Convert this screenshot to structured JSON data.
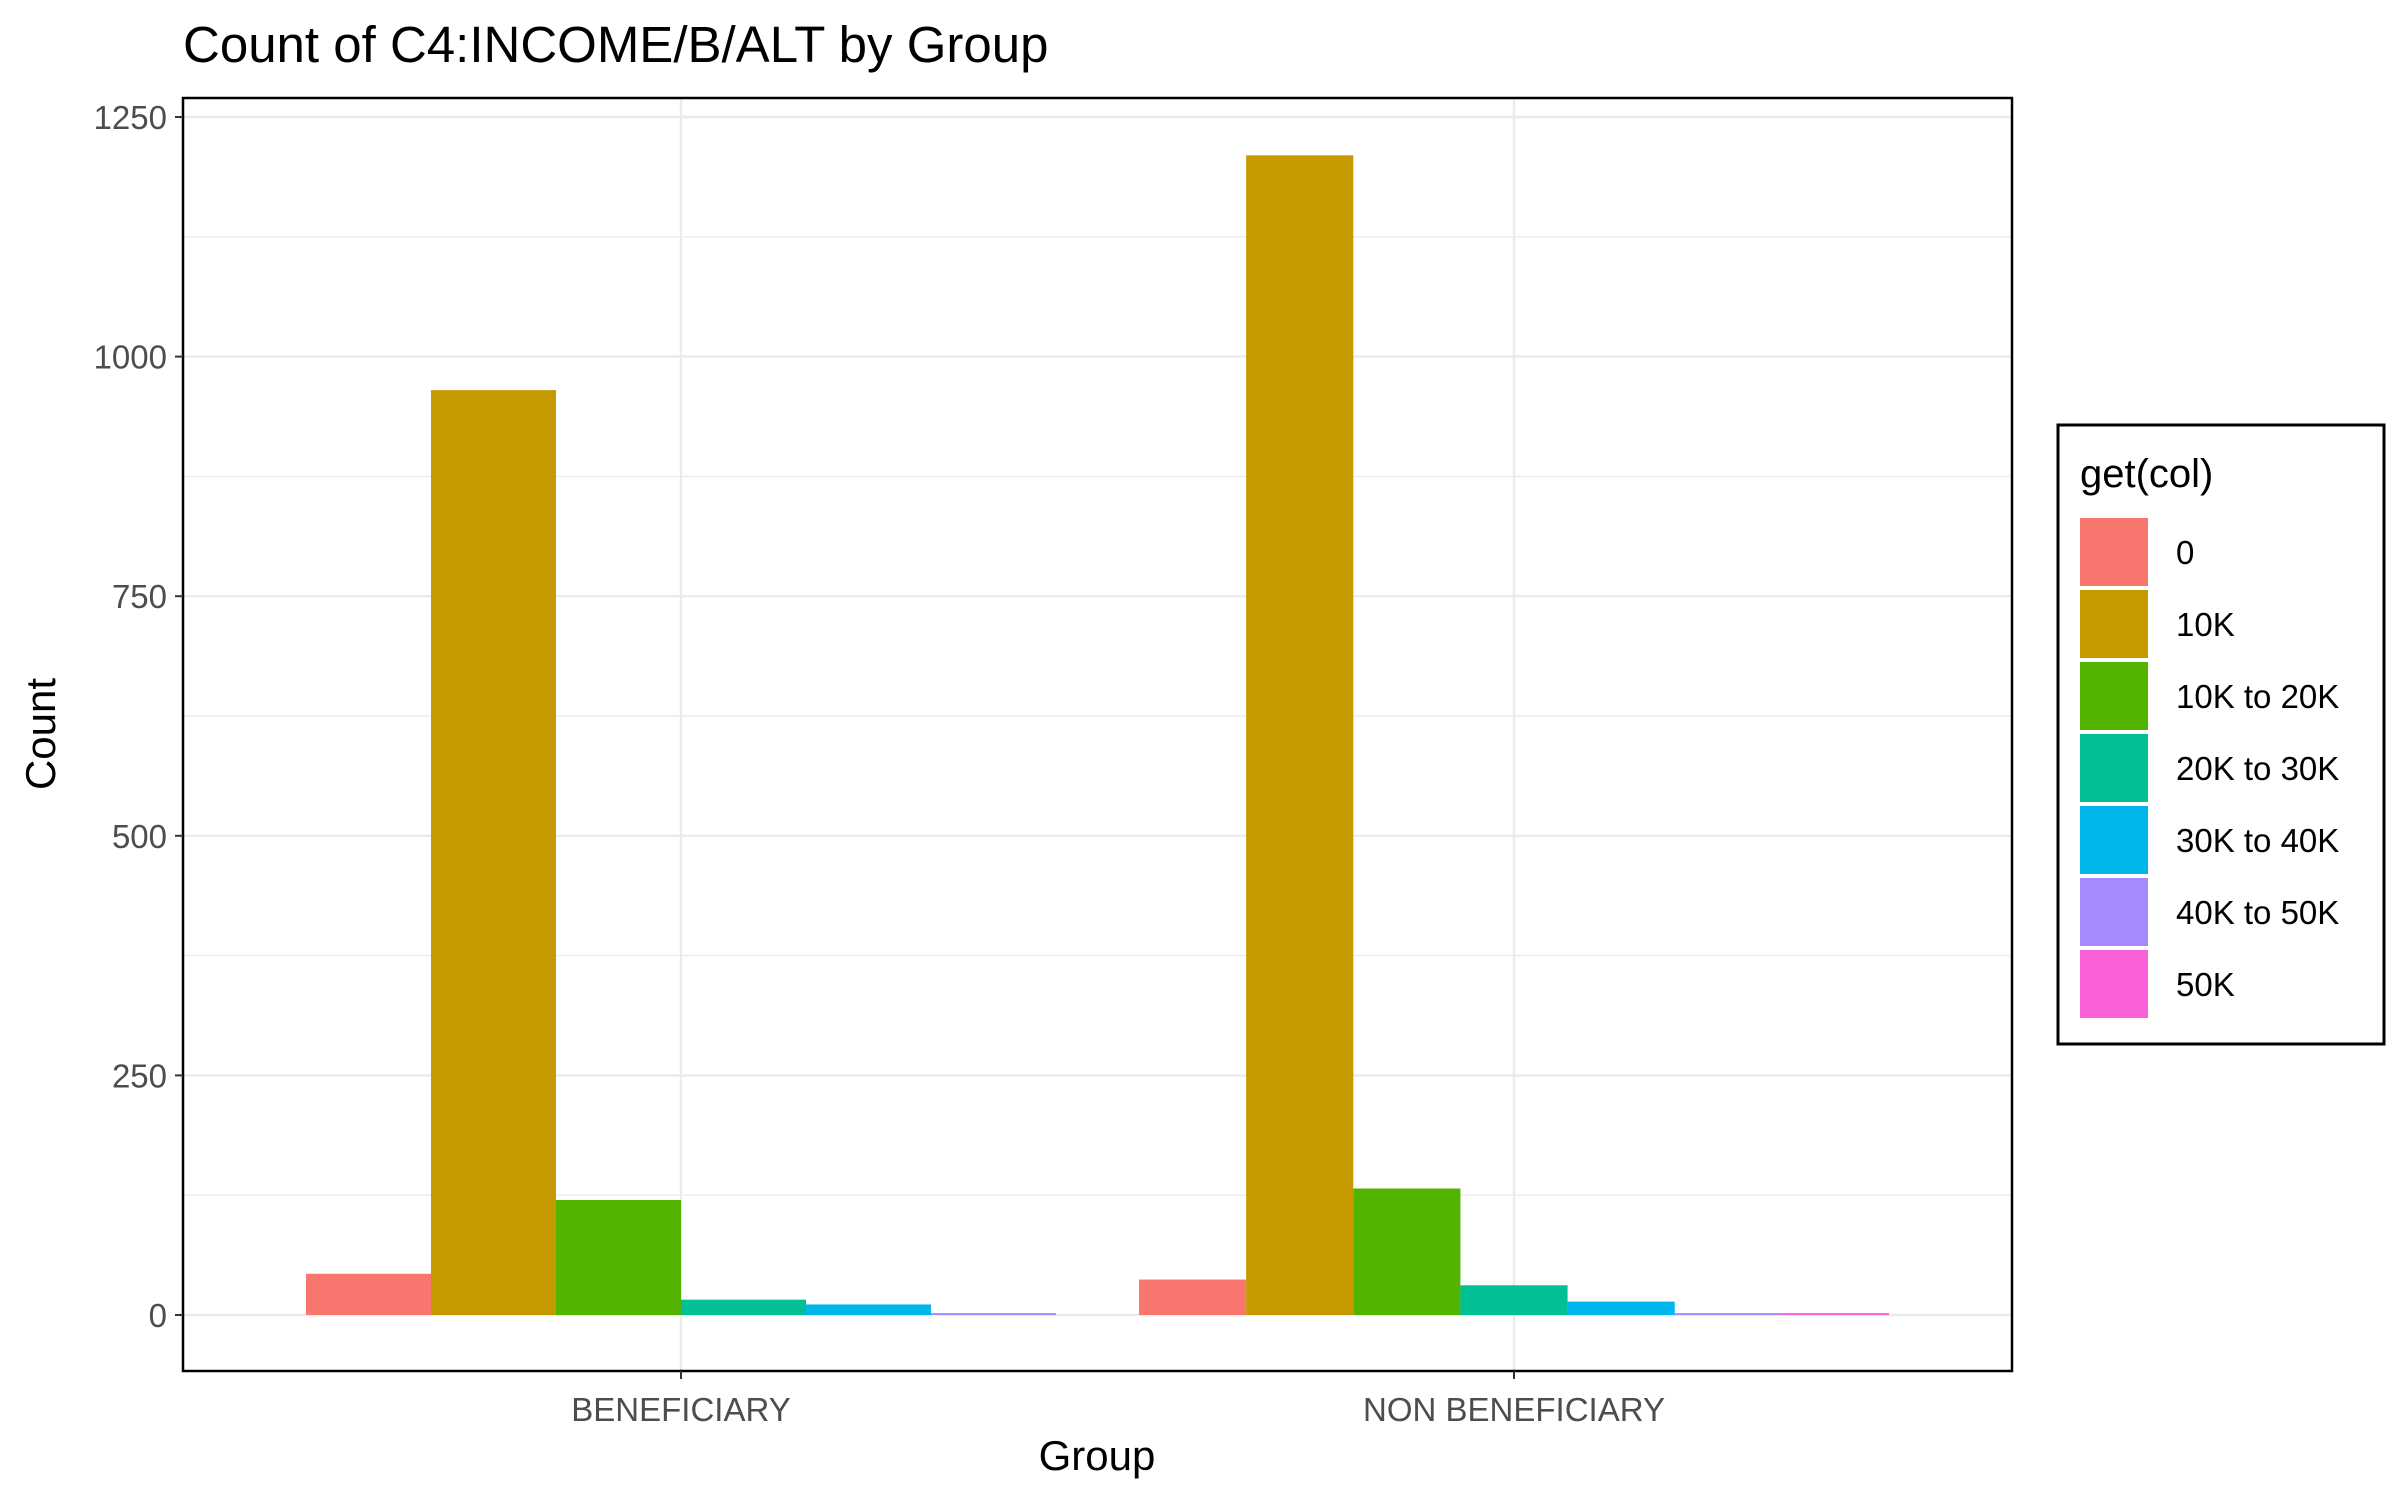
{
  "chart_data": {
    "type": "bar",
    "title": "Count of C4:INCOME/B/ALT by Group",
    "xlabel": "Group",
    "ylabel": "Count",
    "categories": [
      "BENEFICIARY",
      "NON BENEFICIARY"
    ],
    "ylim": [
      0,
      1250
    ],
    "yticks": [
      "0",
      "250",
      "500",
      "750",
      "1000",
      "1250"
    ],
    "grid": true,
    "legend": {
      "title": "get(col)",
      "position": "right"
    },
    "series": [
      {
        "name": "0",
        "color": "#F8766D",
        "values": [
          43,
          37
        ]
      },
      {
        "name": "10K",
        "color": "#C49A00",
        "values": [
          965,
          1210
        ]
      },
      {
        "name": "10K to 20K",
        "color": "#53B400",
        "values": [
          120,
          132
        ]
      },
      {
        "name": "20K to 30K",
        "color": "#00C094",
        "values": [
          16,
          31
        ]
      },
      {
        "name": "30K to 40K",
        "color": "#00B6EB",
        "values": [
          11,
          14
        ]
      },
      {
        "name": "40K to 50K",
        "color": "#A58AFF",
        "values": [
          2,
          2
        ]
      },
      {
        "name": "50K",
        "color": "#FB61D7",
        "values": [
          null,
          2
        ]
      }
    ]
  }
}
